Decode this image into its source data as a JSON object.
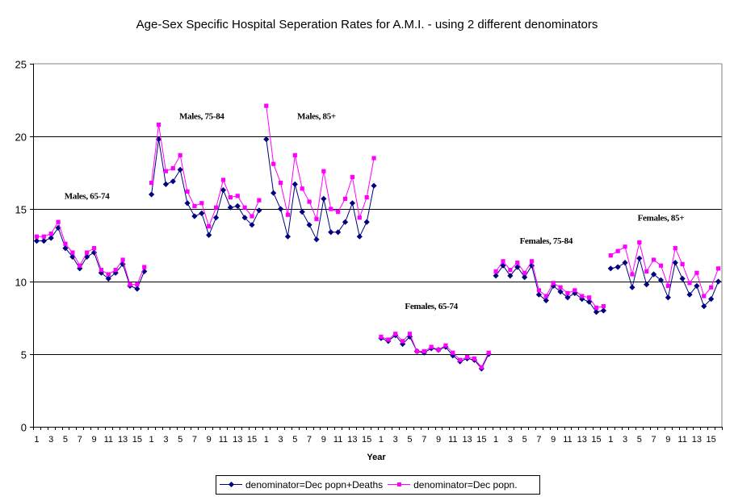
{
  "chart_data": {
    "type": "line",
    "title": "Age-Sex Specific Hospital Seperation Rates for A.M.I. - using 2 different denominators",
    "xlabel": "Year",
    "ylabel": "",
    "ylim": [
      0,
      25
    ],
    "yticks": [
      0,
      5,
      10,
      15,
      20,
      25
    ],
    "grid": true,
    "legend_position": "bottom",
    "groups": [
      {
        "label": "Males, 65-74"
      },
      {
        "label": "Males, 75-84"
      },
      {
        "label": "Males, 85+"
      },
      {
        "label": "Females, 65-74"
      },
      {
        "label": "Females, 75-84"
      },
      {
        "label": "Females, 85+"
      }
    ],
    "categories_per_group": [
      "1",
      "2",
      "3",
      "4",
      "5",
      "6",
      "7",
      "8",
      "9",
      "10",
      "11",
      "12",
      "13",
      "14",
      "15",
      "16"
    ],
    "x_tick_labels_per_group": [
      "1",
      "3",
      "5",
      "7",
      "9",
      "11",
      "13",
      "15"
    ],
    "series": [
      {
        "name": "denominator=Dec popn+Deaths",
        "color": "#000080",
        "marker": "diamond",
        "values": [
          [
            12.8,
            12.8,
            13.0,
            13.7,
            12.3,
            11.7,
            10.9,
            11.7,
            12.0,
            10.6,
            10.2,
            10.6,
            11.2,
            9.7,
            9.5,
            10.7
          ],
          [
            16.0,
            19.8,
            16.7,
            16.9,
            17.7,
            15.4,
            14.5,
            14.7,
            13.2,
            14.4,
            16.3,
            15.1,
            15.2,
            14.4,
            13.9,
            14.9
          ],
          [
            19.8,
            16.1,
            15.0,
            13.1,
            16.7,
            14.8,
            13.9,
            12.9,
            15.7,
            13.4,
            13.4,
            14.1,
            15.4,
            13.1,
            14.1,
            16.6
          ],
          [
            6.1,
            5.9,
            6.3,
            5.7,
            6.2,
            5.2,
            5.1,
            5.4,
            5.3,
            5.5,
            4.9,
            4.5,
            4.7,
            4.6,
            4.0,
            5.0
          ],
          [
            10.4,
            11.1,
            10.4,
            11.0,
            10.3,
            11.1,
            9.1,
            8.7,
            9.7,
            9.3,
            8.9,
            9.2,
            8.8,
            8.6,
            7.9,
            8.0
          ],
          [
            10.9,
            11.0,
            11.3,
            9.6,
            11.6,
            9.8,
            10.5,
            10.1,
            8.9,
            11.3,
            10.2,
            9.1,
            9.7,
            8.3,
            8.8,
            10.0
          ]
        ]
      },
      {
        "name": "denominator=Dec popn.",
        "color": "#FF00FF",
        "marker": "square",
        "values": [
          [
            13.1,
            13.1,
            13.3,
            14.1,
            12.6,
            12.0,
            11.1,
            12.0,
            12.3,
            10.8,
            10.5,
            10.8,
            11.5,
            9.8,
            9.8,
            11.0
          ],
          [
            16.8,
            20.8,
            17.6,
            17.8,
            18.7,
            16.2,
            15.2,
            15.4,
            13.8,
            15.1,
            17.0,
            15.8,
            15.9,
            15.1,
            14.5,
            15.6
          ],
          [
            22.1,
            18.1,
            16.8,
            14.6,
            18.7,
            16.4,
            15.5,
            14.3,
            17.6,
            15.0,
            14.8,
            15.7,
            17.2,
            14.4,
            15.8,
            18.5
          ],
          [
            6.2,
            6.0,
            6.4,
            5.9,
            6.4,
            5.2,
            5.2,
            5.5,
            5.3,
            5.6,
            5.1,
            4.6,
            4.8,
            4.7,
            4.1,
            5.1
          ],
          [
            10.7,
            11.4,
            10.8,
            11.3,
            10.6,
            11.4,
            9.4,
            9.0,
            9.9,
            9.6,
            9.2,
            9.4,
            9.0,
            8.9,
            8.2,
            8.3
          ],
          [
            11.8,
            12.1,
            12.4,
            10.5,
            12.7,
            10.7,
            11.5,
            11.1,
            9.7,
            12.3,
            11.2,
            9.9,
            10.6,
            9.0,
            9.6,
            10.9
          ]
        ]
      }
    ]
  }
}
